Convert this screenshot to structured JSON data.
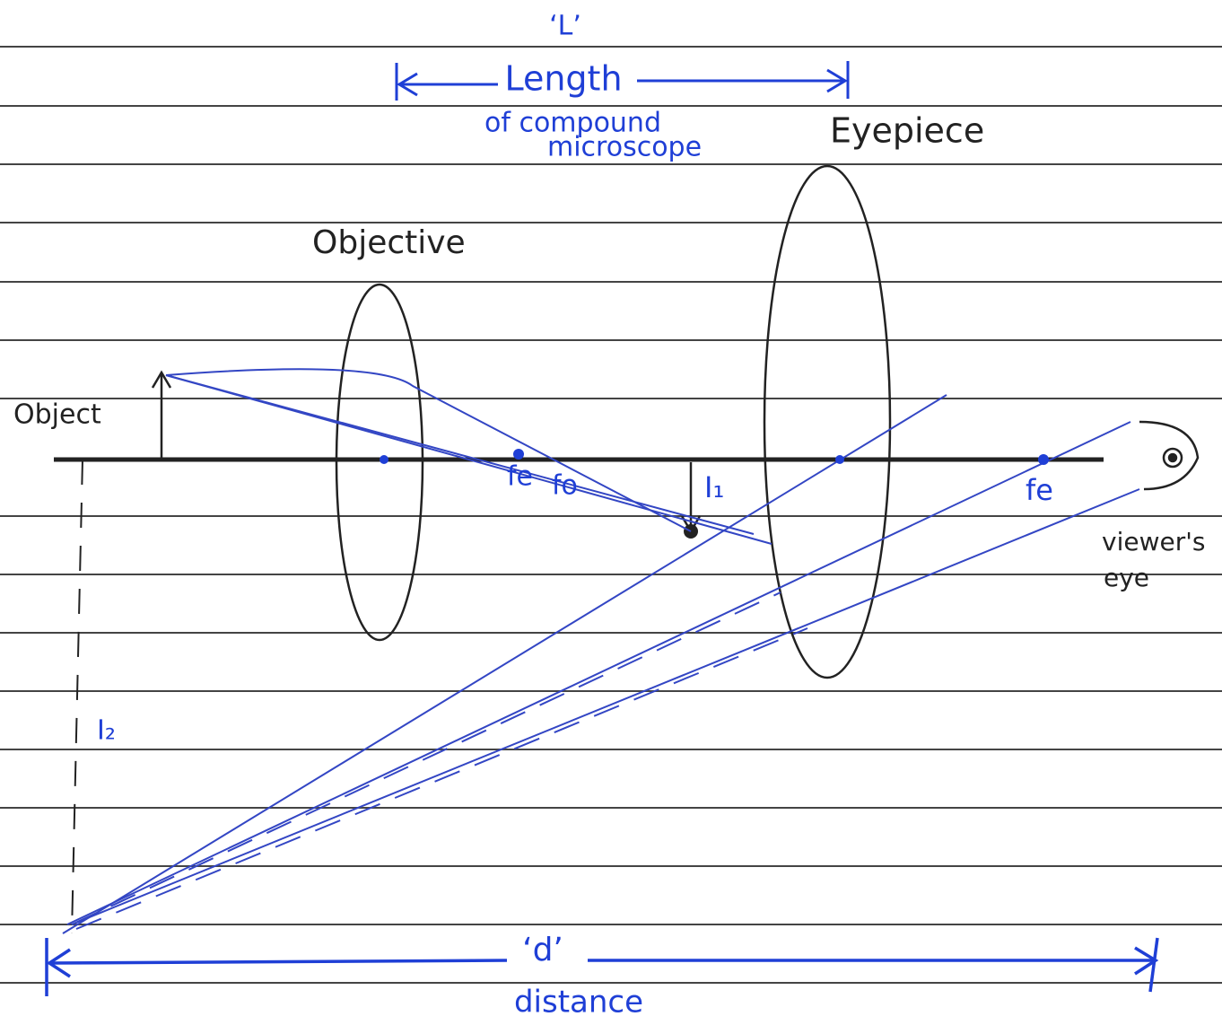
{
  "top_dimension": {
    "symbol": "‘L’",
    "label": "Length",
    "note_lines": [
      "of compound",
      "microscope"
    ]
  },
  "lenses": {
    "objective": "Objective",
    "eyepiece": "Eyepiece"
  },
  "object": "Object",
  "focal_points": [
    "fe",
    "fo",
    "fe"
  ],
  "images": [
    "I₁",
    "I₂"
  ],
  "viewer": [
    "viewer's",
    "eye"
  ],
  "bottom_dimension": {
    "symbol": "‘d’",
    "label": "distance"
  }
}
